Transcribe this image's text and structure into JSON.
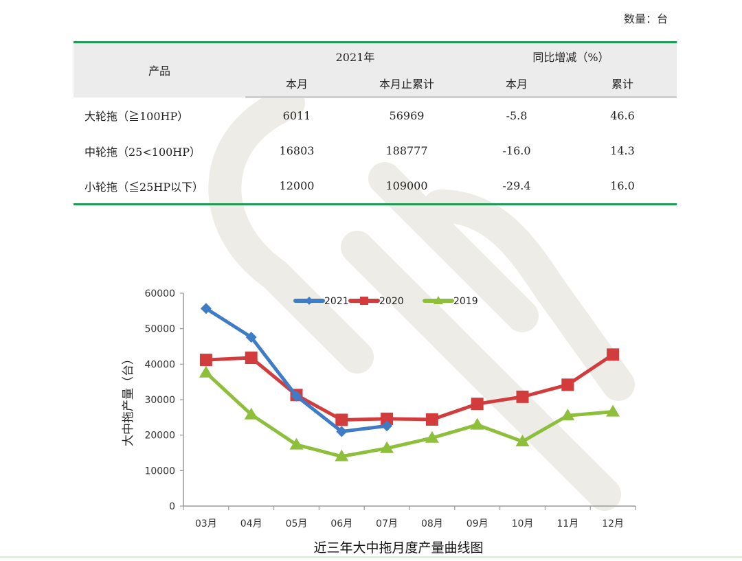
{
  "unit_note": "数量：台",
  "table": {
    "header": {
      "product": "产品",
      "group_2021": "2021年",
      "group_yoy": "同比增减（%）",
      "sub": [
        "本月",
        "本月止累计",
        "本月",
        "累计"
      ]
    },
    "rows": [
      {
        "product": "大轮拖（≧100HP）",
        "month": "6011",
        "cumulative": "56969",
        "yoy_month": "-5.8",
        "yoy_cum": "46.6"
      },
      {
        "product": "中轮拖（25<100HP）",
        "month": "16803",
        "cumulative": "188777",
        "yoy_month": "-16.0",
        "yoy_cum": "14.3"
      },
      {
        "product": "小轮拖（≦25HP以下）",
        "month": "12000",
        "cumulative": "109000",
        "yoy_month": "-29.4",
        "yoy_cum": "16.0"
      }
    ]
  },
  "colors": {
    "table_rule": "#1f9a55",
    "series_2021": "#3e7cc8",
    "series_2020": "#d23c3c",
    "series_2019": "#8dbf3b"
  },
  "chart_data": {
    "type": "line",
    "title": "近三年大中拖月度产量曲线图",
    "xlabel": "",
    "ylabel": "大中拖产量（台）",
    "categories": [
      "03月",
      "04月",
      "05月",
      "06月",
      "07月",
      "08月",
      "09月",
      "10月",
      "11月",
      "12月"
    ],
    "y_ticks": [
      "0",
      "10000",
      "20000",
      "30000",
      "40000",
      "50000",
      "60000"
    ],
    "ylim": [
      0,
      60000
    ],
    "grid": false,
    "legend_position": "top",
    "series": [
      {
        "name": "2021",
        "marker": "diamond",
        "values": [
          55700,
          47600,
          31000,
          21000,
          22600,
          null,
          null,
          null,
          null,
          null
        ]
      },
      {
        "name": "2020",
        "marker": "square",
        "values": [
          41200,
          41800,
          31300,
          24300,
          24600,
          24400,
          28800,
          30800,
          34200,
          42700
        ]
      },
      {
        "name": "2019",
        "marker": "triangle",
        "values": [
          37600,
          25800,
          17300,
          14000,
          16300,
          19200,
          22900,
          18200,
          25500,
          26600
        ]
      }
    ]
  }
}
